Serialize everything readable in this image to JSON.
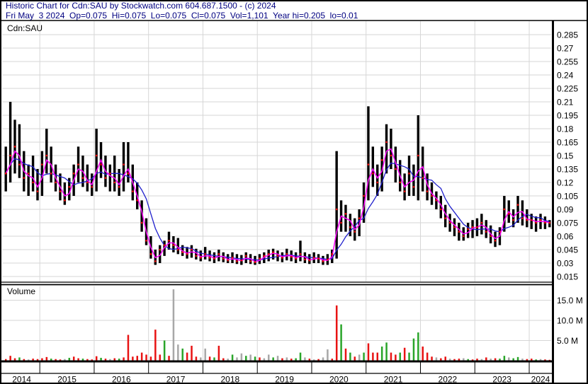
{
  "header": {
    "line1": "Historic Chart for Cdn:SAU by Stockwatch.com 604.687.1500 - (c) 2024",
    "line2": "Fri May  3 2024  Op=0.075  Hi=0.075  Lo=0.075  Cl=0.075  Vol=1,101  Year hi=0.205  lo=0.01"
  },
  "price_pane": {
    "symbol": "Cdn:SAU"
  },
  "volume_pane": {
    "label": "Volume"
  },
  "colors": {
    "background": "#ffffff",
    "header_text": "#000080",
    "axis_text": "#000000",
    "grid": "#d6d6d6",
    "border": "#000000",
    "price_bar": "#000000",
    "close_dot": "#ee0000",
    "ma_short": "#ff00ff",
    "ma_long": "#2020cc",
    "vol_up": "#2aa52a",
    "vol_down": "#e81313",
    "vol_neutral": "#a8a8a8"
  },
  "chart_data": {
    "type": "ohlc-bar",
    "title": "Historic Chart for Cdn:SAU",
    "subtitle": "10-year daily price history with short (magenta) and long (blue) moving averages, volume below",
    "x_range": [
      "2014-05",
      "2024-05"
    ],
    "interval": "monthly samples approximating daily bars",
    "price_axis": {
      "side": "right",
      "tick_labels": [
        "0.285",
        "0.27",
        "0.255",
        "0.24",
        "0.225",
        "0.21",
        "0.195",
        "0.18",
        "0.165",
        "0.15",
        "0.135",
        "0.12",
        "0.105",
        "0.09",
        "0.075",
        "0.06",
        "0.045",
        "0.03",
        "0.015"
      ],
      "tick_step": 0.015,
      "ylim": [
        0.0075,
        0.2925
      ]
    },
    "volume_axis": {
      "side": "right",
      "ticks": [
        {
          "value_m": 15,
          "label": "15.0 M"
        },
        {
          "value_m": 10,
          "label": "10.0 M"
        },
        {
          "value_m": 5,
          "label": "5.0 M"
        }
      ]
    },
    "last_trade": {
      "date": "Fri May 3 2024",
      "open": 0.075,
      "high": 0.075,
      "low": 0.075,
      "close": 0.075,
      "volume": "1,101",
      "year_high": 0.205,
      "year_low": 0.01
    },
    "ma_short_window": 2,
    "ma_long_window": 6,
    "years_data": [
      {
        "year": "2014",
        "hlc": [
          [
            0.16,
            0.11,
            0.13
          ],
          [
            0.21,
            0.12,
            0.15
          ],
          [
            0.19,
            0.13,
            0.16
          ],
          [
            0.185,
            0.125,
            0.14
          ],
          [
            0.155,
            0.11,
            0.125
          ],
          [
            0.14,
            0.105,
            0.13
          ],
          [
            0.15,
            0.11,
            0.12
          ],
          [
            0.135,
            0.1,
            0.11
          ]
        ],
        "volume_m": [
          0.4,
          1.2,
          0.6,
          0.8,
          0.4,
          0.3,
          0.5,
          0.4
        ],
        "volume_dir": "rrrgrkrr"
      },
      {
        "year": "2015",
        "hlc": [
          [
            0.155,
            0.105,
            0.14
          ],
          [
            0.18,
            0.13,
            0.15
          ],
          [
            0.16,
            0.12,
            0.13
          ],
          [
            0.14,
            0.11,
            0.12
          ],
          [
            0.13,
            0.1,
            0.11
          ],
          [
            0.12,
            0.095,
            0.1
          ],
          [
            0.125,
            0.1,
            0.115
          ],
          [
            0.14,
            0.105,
            0.13
          ],
          [
            0.16,
            0.12,
            0.14
          ],
          [
            0.15,
            0.115,
            0.125
          ],
          [
            0.14,
            0.11,
            0.12
          ],
          [
            0.13,
            0.105,
            0.115
          ]
        ],
        "volume_m": [
          0.6,
          0.9,
          0.5,
          0.4,
          0.3,
          0.4,
          0.7,
          1.0,
          0.6,
          0.5,
          0.4,
          0.3
        ],
        "volume_dir": "rrgrrkgrrgrr"
      },
      {
        "year": "2016",
        "hlc": [
          [
            0.18,
            0.11,
            0.15
          ],
          [
            0.165,
            0.125,
            0.14
          ],
          [
            0.15,
            0.115,
            0.125
          ],
          [
            0.14,
            0.11,
            0.13
          ],
          [
            0.15,
            0.11,
            0.12
          ],
          [
            0.135,
            0.105,
            0.115
          ],
          [
            0.165,
            0.11,
            0.14
          ],
          [
            0.165,
            0.12,
            0.13
          ],
          [
            0.14,
            0.1,
            0.11
          ],
          [
            0.12,
            0.09,
            0.1
          ],
          [
            0.1,
            0.065,
            0.075
          ],
          [
            0.08,
            0.05,
            0.055
          ]
        ],
        "volume_m": [
          1.1,
          0.7,
          0.5,
          0.4,
          0.6,
          0.5,
          0.8,
          6.4,
          1.0,
          1.2,
          2.0,
          1.5
        ],
        "volume_dir": "rgrkrgrrrrrr"
      },
      {
        "year": "2017",
        "hlc": [
          [
            0.06,
            0.035,
            0.04
          ],
          [
            0.045,
            0.028,
            0.032
          ],
          [
            0.05,
            0.03,
            0.045
          ],
          [
            0.055,
            0.038,
            0.05
          ],
          [
            0.065,
            0.045,
            0.055
          ],
          [
            0.06,
            0.042,
            0.05
          ],
          [
            0.058,
            0.04,
            0.045
          ],
          [
            0.05,
            0.038,
            0.042
          ],
          [
            0.048,
            0.035,
            0.04
          ],
          [
            0.05,
            0.036,
            0.045
          ],
          [
            0.046,
            0.034,
            0.038
          ],
          [
            0.044,
            0.032,
            0.036
          ]
        ],
        "volume_m": [
          1.0,
          7.7,
          1.5,
          5.0,
          1.2,
          17.7,
          4.0,
          3.0,
          2.0,
          3.7,
          1.0,
          0.8
        ],
        "volume_dir": "rrrgrkkgrrrk"
      },
      {
        "year": "2018",
        "hlc": [
          [
            0.048,
            0.034,
            0.04
          ],
          [
            0.044,
            0.032,
            0.036
          ],
          [
            0.042,
            0.03,
            0.035
          ],
          [
            0.045,
            0.032,
            0.04
          ],
          [
            0.042,
            0.031,
            0.035
          ],
          [
            0.04,
            0.03,
            0.033
          ],
          [
            0.042,
            0.03,
            0.036
          ],
          [
            0.04,
            0.029,
            0.032
          ],
          [
            0.039,
            0.028,
            0.033
          ],
          [
            0.042,
            0.03,
            0.038
          ],
          [
            0.04,
            0.029,
            0.032
          ],
          [
            0.038,
            0.028,
            0.031
          ]
        ],
        "volume_m": [
          3.0,
          1.0,
          0.8,
          3.7,
          0.6,
          0.5,
          1.5,
          0.8,
          1.8,
          1.2,
          1.5,
          1.0
        ],
        "volume_dir": "krgrrkgkkgkg"
      },
      {
        "year": "2019",
        "hlc": [
          [
            0.04,
            0.029,
            0.035
          ],
          [
            0.042,
            0.03,
            0.038
          ],
          [
            0.045,
            0.032,
            0.04
          ],
          [
            0.046,
            0.034,
            0.042
          ],
          [
            0.044,
            0.032,
            0.038
          ],
          [
            0.042,
            0.031,
            0.036
          ],
          [
            0.046,
            0.033,
            0.04
          ],
          [
            0.044,
            0.032,
            0.037
          ],
          [
            0.042,
            0.03,
            0.035
          ],
          [
            0.055,
            0.032,
            0.04
          ],
          [
            0.042,
            0.03,
            0.034
          ],
          [
            0.04,
            0.029,
            0.033
          ]
        ],
        "volume_m": [
          0.8,
          0.6,
          1.5,
          0.8,
          1.2,
          0.6,
          0.8,
          0.5,
          0.6,
          2.0,
          0.8,
          0.5
        ],
        "volume_dir": "rkkgkrkrggkr"
      },
      {
        "year": "2020",
        "hlc": [
          [
            0.042,
            0.03,
            0.036
          ],
          [
            0.04,
            0.03,
            0.035
          ],
          [
            0.038,
            0.028,
            0.032
          ],
          [
            0.04,
            0.028,
            0.034
          ],
          [
            0.045,
            0.03,
            0.04
          ],
          [
            0.155,
            0.035,
            0.09
          ],
          [
            0.1,
            0.065,
            0.075
          ],
          [
            0.095,
            0.065,
            0.085
          ],
          [
            0.085,
            0.06,
            0.07
          ],
          [
            0.08,
            0.055,
            0.065
          ],
          [
            0.09,
            0.06,
            0.08
          ],
          [
            0.12,
            0.075,
            0.105
          ]
        ],
        "volume_m": [
          0.3,
          0.4,
          0.8,
          2.8,
          0.5,
          13.7,
          9.0,
          3.0,
          2.0,
          1.0,
          1.5,
          2.0
        ],
        "volume_dir": "krkkrrgrgrkg"
      },
      {
        "year": "2021",
        "hlc": [
          [
            0.205,
            0.1,
            0.14
          ],
          [
            0.16,
            0.115,
            0.13
          ],
          [
            0.14,
            0.105,
            0.12
          ],
          [
            0.16,
            0.11,
            0.145
          ],
          [
            0.185,
            0.13,
            0.165
          ],
          [
            0.18,
            0.135,
            0.15
          ],
          [
            0.16,
            0.12,
            0.135
          ],
          [
            0.145,
            0.11,
            0.12
          ],
          [
            0.13,
            0.1,
            0.11
          ],
          [
            0.15,
            0.105,
            0.13
          ],
          [
            0.14,
            0.105,
            0.115
          ],
          [
            0.195,
            0.1,
            0.15
          ]
        ],
        "volume_m": [
          4.3,
          2.0,
          2.0,
          3.5,
          4.5,
          2.0,
          1.5,
          2.0,
          3.2,
          2.0,
          5.5,
          7.0
        ],
        "volume_dir": "rrrggrrgrggg"
      },
      {
        "year": "2022",
        "hlc": [
          [
            0.16,
            0.11,
            0.125
          ],
          [
            0.13,
            0.1,
            0.11
          ],
          [
            0.12,
            0.095,
            0.105
          ],
          [
            0.11,
            0.09,
            0.1
          ],
          [
            0.105,
            0.08,
            0.09
          ],
          [
            0.095,
            0.07,
            0.08
          ],
          [
            0.085,
            0.065,
            0.075
          ],
          [
            0.08,
            0.06,
            0.07
          ],
          [
            0.075,
            0.055,
            0.065
          ],
          [
            0.07,
            0.055,
            0.06
          ],
          [
            0.075,
            0.058,
            0.068
          ],
          [
            0.078,
            0.058,
            0.07
          ]
        ],
        "volume_m": [
          3.5,
          2.0,
          1.0,
          0.8,
          0.6,
          1.0,
          0.5,
          0.4,
          0.5,
          0.6,
          0.4,
          0.3
        ],
        "volume_dir": "rrrkrrkrrkgr"
      },
      {
        "year": "2023",
        "hlc": [
          [
            0.08,
            0.06,
            0.07
          ],
          [
            0.085,
            0.062,
            0.075
          ],
          [
            0.078,
            0.058,
            0.065
          ],
          [
            0.072,
            0.052,
            0.06
          ],
          [
            0.065,
            0.048,
            0.055
          ],
          [
            0.07,
            0.05,
            0.065
          ],
          [
            0.105,
            0.065,
            0.09
          ],
          [
            0.1,
            0.075,
            0.085
          ],
          [
            0.09,
            0.07,
            0.078
          ],
          [
            0.105,
            0.075,
            0.095
          ],
          [
            0.1,
            0.072,
            0.08
          ],
          [
            0.09,
            0.07,
            0.078
          ]
        ],
        "volume_m": [
          0.5,
          0.4,
          0.8,
          0.5,
          0.6,
          0.5,
          1.2,
          0.8,
          0.6,
          0.9,
          0.5,
          0.4
        ],
        "volume_dir": "rkrkrggkggkr"
      },
      {
        "year": "2024",
        "hlc": [
          [
            0.085,
            0.068,
            0.078
          ],
          [
            0.082,
            0.065,
            0.075
          ],
          [
            0.085,
            0.068,
            0.078
          ],
          [
            0.082,
            0.068,
            0.075
          ],
          [
            0.078,
            0.07,
            0.075
          ]
        ],
        "volume_m": [
          0.5,
          0.3,
          0.4,
          0.3,
          0.2
        ],
        "volume_dir": "rgkrr"
      }
    ]
  }
}
